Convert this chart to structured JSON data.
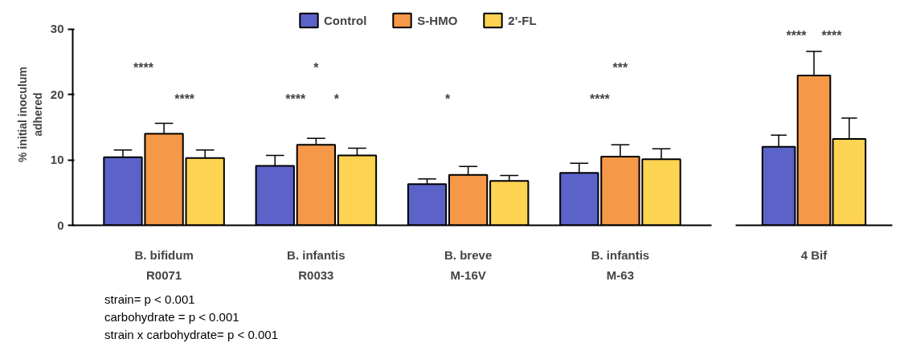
{
  "chart_data": [
    {
      "type": "bar",
      "ylabel": "% initial inoculum\nadhered",
      "categories": [
        "B. bifidum\nR0071",
        "B. infantis\nR0033",
        "B. breve\nM-16V",
        "B. infantis\nM-63"
      ],
      "ylim": [
        0,
        30
      ],
      "yticks": [
        0,
        10,
        20,
        30
      ],
      "legend": "top",
      "tick_labels": "xy",
      "series": [
        {
          "name": "Control",
          "color": "#5b62c8",
          "values": [
            10.4,
            9.1,
            6.3,
            8.0
          ],
          "errors": [
            [
              10.4,
              11.5
            ],
            [
              9.1,
              10.7
            ],
            [
              6.3,
              7.1
            ],
            [
              8.0,
              9.5
            ]
          ]
        },
        {
          "name": "S-HMO",
          "color": "#f59848",
          "values": [
            14.0,
            12.3,
            7.7,
            10.5
          ],
          "errors": [
            [
              14.0,
              15.6
            ],
            [
              12.3,
              13.3
            ],
            [
              7.7,
              9.0
            ],
            [
              10.5,
              12.3
            ]
          ]
        },
        {
          "name": "2'-FL",
          "color": "#fdd352",
          "values": [
            10.3,
            10.7,
            6.8,
            10.1
          ],
          "errors": [
            [
              10.3,
              11.5
            ],
            [
              10.7,
              11.8
            ],
            [
              6.8,
              7.6
            ],
            [
              10.1,
              11.7
            ]
          ]
        }
      ],
      "annotations": [
        "****",
        "****",
        "*",
        "****",
        "*",
        "*",
        "***",
        "****",
        "strain= p < 0.001",
        "carbohydrate = p < 0.001",
        "strain x carbohydrate= p < 0.001"
      ]
    },
    {
      "type": "bar",
      "categories": [
        "4 Bif"
      ],
      "ylim": [
        0,
        30
      ],
      "tick_labels": "x",
      "series": [
        {
          "color": "#5b62c8",
          "values": [
            12.0
          ],
          "errors": [
            [
              12.0,
              13.8
            ]
          ]
        },
        {
          "color": "#f59848",
          "values": [
            22.9
          ],
          "errors": [
            [
              22.9,
              26.6
            ]
          ]
        },
        {
          "color": "#fdd352",
          "values": [
            13.2
          ],
          "errors": [
            [
              13.2,
              16.4
            ]
          ]
        }
      ],
      "annotations": [
        "****",
        "****"
      ]
    }
  ]
}
